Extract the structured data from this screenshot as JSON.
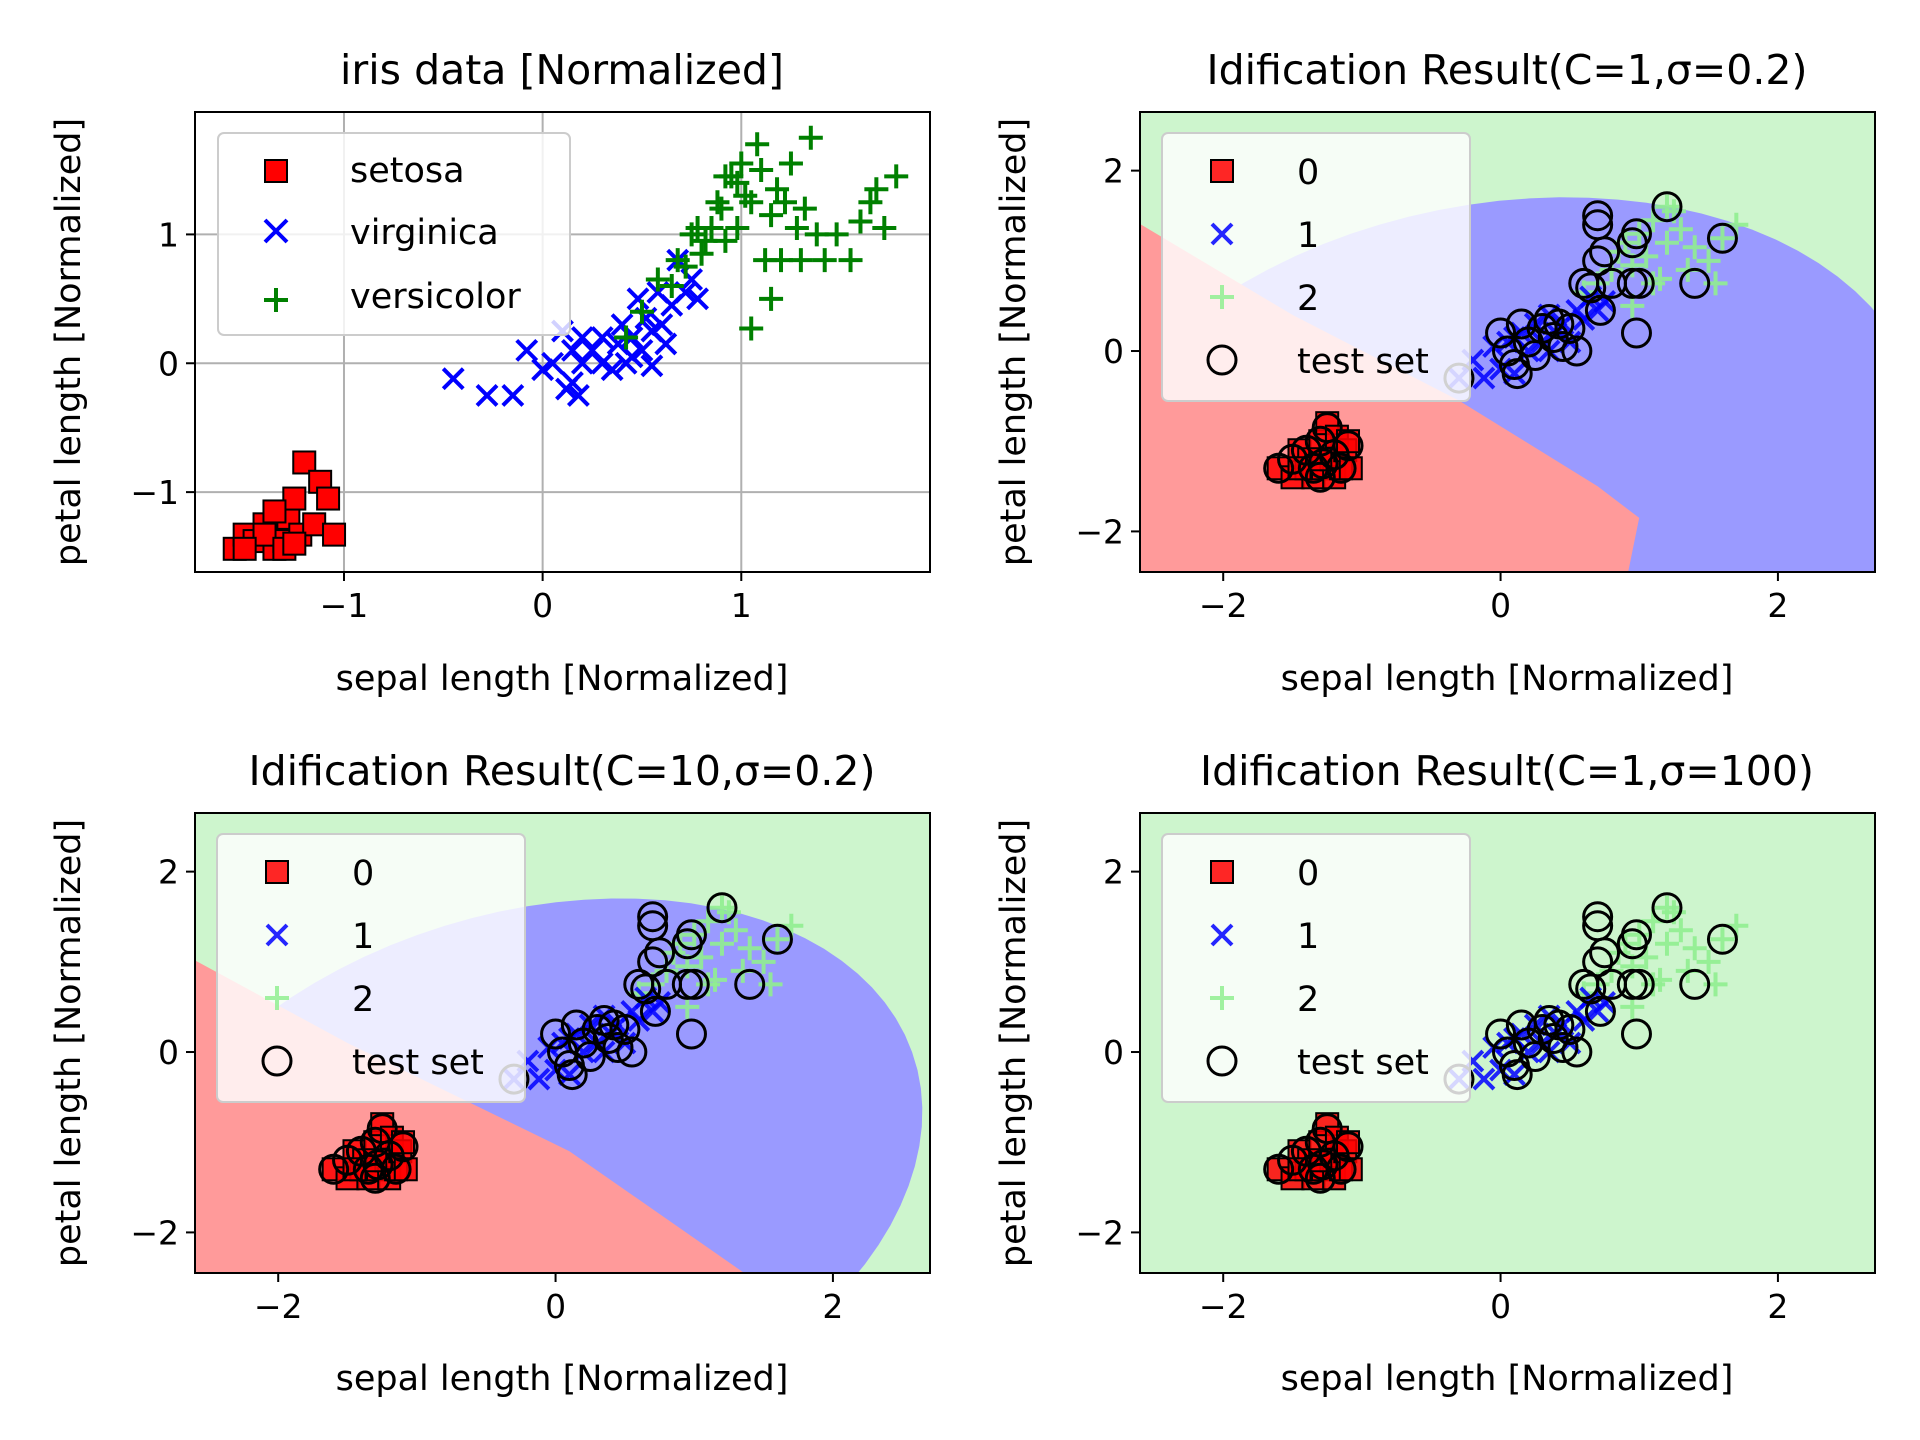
{
  "chart_data": [
    {
      "type": "scatter",
      "title": "iris data [Normalized]",
      "xlabel": "sepal length [Normalized]",
      "ylabel": "petal length [Normalized]",
      "xlim": [
        -1.75,
        1.95
      ],
      "ylim": [
        -1.62,
        1.95
      ],
      "xticks": [
        -1,
        0,
        1
      ],
      "yticks": [
        -1,
        0,
        1
      ],
      "xtick_labels": [
        "−1",
        "0",
        "1"
      ],
      "ytick_labels": [
        "−1",
        "0",
        "1"
      ],
      "grid": true,
      "legend_placement": "upper-left",
      "series": [
        {
          "name": "setosa",
          "marker": "square",
          "color": "#ff0000",
          "points": [
            [
              -1.55,
              -1.44
            ],
            [
              -1.5,
              -1.33
            ],
            [
              -1.45,
              -1.38
            ],
            [
              -1.4,
              -1.25
            ],
            [
              -1.35,
              -1.44
            ],
            [
              -1.3,
              -1.38
            ],
            [
              -1.28,
              -1.2
            ],
            [
              -1.25,
              -1.05
            ],
            [
              -1.22,
              -1.33
            ],
            [
              -1.2,
              -0.77
            ],
            [
              -1.15,
              -1.25
            ],
            [
              -1.12,
              -0.92
            ],
            [
              -1.08,
              -1.05
            ],
            [
              -1.05,
              -1.33
            ],
            [
              -1.4,
              -1.33
            ],
            [
              -1.3,
              -1.44
            ],
            [
              -1.5,
              -1.44
            ],
            [
              -1.35,
              -1.15
            ],
            [
              -1.25,
              -1.4
            ]
          ]
        },
        {
          "name": "virginica",
          "marker": "x",
          "color": "#0000ff",
          "points": [
            [
              -0.45,
              -0.12
            ],
            [
              -0.28,
              -0.25
            ],
            [
              -0.15,
              -0.25
            ],
            [
              -0.08,
              0.1
            ],
            [
              0.0,
              -0.05
            ],
            [
              0.05,
              0.0
            ],
            [
              0.1,
              0.25
            ],
            [
              0.12,
              -0.2
            ],
            [
              0.15,
              0.1
            ],
            [
              0.18,
              -0.25
            ],
            [
              0.2,
              0.0
            ],
            [
              0.25,
              0.1
            ],
            [
              0.3,
              0.2
            ],
            [
              0.35,
              -0.05
            ],
            [
              0.38,
              0.15
            ],
            [
              0.4,
              0.3
            ],
            [
              0.42,
              0.0
            ],
            [
              0.45,
              0.2
            ],
            [
              0.48,
              0.5
            ],
            [
              0.5,
              0.1
            ],
            [
              0.52,
              0.35
            ],
            [
              0.55,
              0.25
            ],
            [
              0.58,
              0.55
            ],
            [
              0.6,
              0.3
            ],
            [
              0.65,
              0.45
            ],
            [
              0.68,
              0.8
            ],
            [
              0.72,
              0.55
            ],
            [
              0.75,
              0.65
            ],
            [
              0.78,
              0.5
            ],
            [
              0.45,
              0.05
            ],
            [
              0.3,
              0.0
            ],
            [
              0.55,
              -0.02
            ],
            [
              0.62,
              0.15
            ],
            [
              0.2,
              0.2
            ],
            [
              0.15,
              -0.15
            ]
          ]
        },
        {
          "name": "versicolor",
          "marker": "plus",
          "color": "#008000",
          "points": [
            [
              0.42,
              0.2
            ],
            [
              0.5,
              0.4
            ],
            [
              0.58,
              0.65
            ],
            [
              0.65,
              0.6
            ],
            [
              0.68,
              0.8
            ],
            [
              0.72,
              0.75
            ],
            [
              0.75,
              1.0
            ],
            [
              0.78,
              1.05
            ],
            [
              0.8,
              0.85
            ],
            [
              0.82,
              0.95
            ],
            [
              0.85,
              1.05
            ],
            [
              0.88,
              1.25
            ],
            [
              0.9,
              1.2
            ],
            [
              0.92,
              0.95
            ],
            [
              0.95,
              1.45
            ],
            [
              0.98,
              1.4
            ],
            [
              1.0,
              1.55
            ],
            [
              1.02,
              1.3
            ],
            [
              1.05,
              1.25
            ],
            [
              1.08,
              1.7
            ],
            [
              1.1,
              1.5
            ],
            [
              1.12,
              0.8
            ],
            [
              1.15,
              1.15
            ],
            [
              1.18,
              1.35
            ],
            [
              1.2,
              0.8
            ],
            [
              1.22,
              1.25
            ],
            [
              1.25,
              1.55
            ],
            [
              1.28,
              1.05
            ],
            [
              1.3,
              0.8
            ],
            [
              1.32,
              1.2
            ],
            [
              1.35,
              1.75
            ],
            [
              1.38,
              1.0
            ],
            [
              1.42,
              0.8
            ],
            [
              1.48,
              1.0
            ],
            [
              1.55,
              0.8
            ],
            [
              1.6,
              1.1
            ],
            [
              1.65,
              1.25
            ],
            [
              1.68,
              1.35
            ],
            [
              1.72,
              1.05
            ],
            [
              1.78,
              1.45
            ],
            [
              1.05,
              0.27
            ],
            [
              1.15,
              0.5
            ],
            [
              0.92,
              1.45
            ],
            [
              0.98,
              1.05
            ]
          ]
        }
      ]
    },
    {
      "type": "scatter",
      "title": "Idification Result(C=1,σ=0.2)",
      "xlabel": "sepal length [Normalized]",
      "ylabel": "petal length [Normalized]",
      "xlim": [
        -2.6,
        2.7
      ],
      "ylim": [
        -2.45,
        2.65
      ],
      "xticks": [
        -2,
        0,
        2
      ],
      "yticks": [
        -2,
        0,
        2
      ],
      "xtick_labels": [
        "−2",
        "0",
        "2"
      ],
      "ytick_labels": [
        "−2",
        "0",
        "2"
      ],
      "grid": false,
      "legend_placement": "upper-left",
      "background": "decision regions: class 0 (red) lower-left, class 1 (blue) elliptical band, class 2 (green) elsewhere",
      "legend_entries": [
        "0",
        "1",
        "2",
        "test set"
      ]
    },
    {
      "type": "scatter",
      "title": "Idification Result(C=10,σ=0.2)",
      "xlabel": "sepal length [Normalized]",
      "ylabel": "petal length [Normalized]",
      "xlim": [
        -2.6,
        2.7
      ],
      "ylim": [
        -2.45,
        2.65
      ],
      "xticks": [
        -2,
        0,
        2
      ],
      "yticks": [
        -2,
        0,
        2
      ],
      "xtick_labels": [
        "−2",
        "0",
        "2"
      ],
      "ytick_labels": [
        "−2",
        "0",
        "2"
      ],
      "grid": false,
      "legend_placement": "upper-left",
      "background": "decision regions: class 0 (red) lower-left, class 1 (blue) elliptical band, class 2 (green) elsewhere",
      "legend_entries": [
        "0",
        "1",
        "2",
        "test set"
      ]
    },
    {
      "type": "scatter",
      "title": "Idification Result(C=1,σ=100)",
      "xlabel": "sepal length [Normalized]",
      "ylabel": "petal length [Normalized]",
      "xlim": [
        -2.6,
        2.7
      ],
      "ylim": [
        -2.45,
        2.65
      ],
      "xticks": [
        -2,
        0,
        2
      ],
      "yticks": [
        -2,
        0,
        2
      ],
      "xtick_labels": [
        "−2",
        "0",
        "2"
      ],
      "ytick_labels": [
        "−2",
        "0",
        "2"
      ],
      "grid": false,
      "legend_placement": "upper-left",
      "background": "decision region: class 2 (green) everywhere",
      "legend_entries": [
        "0",
        "1",
        "2",
        "test set"
      ]
    }
  ],
  "result_points": {
    "class0": [
      [
        -1.6,
        -1.3
      ],
      [
        -1.5,
        -1.4
      ],
      [
        -1.45,
        -1.1
      ],
      [
        -1.4,
        -1.3
      ],
      [
        -1.38,
        -1.2
      ],
      [
        -1.35,
        -1.4
      ],
      [
        -1.3,
        -1.0
      ],
      [
        -1.28,
        -1.3
      ],
      [
        -1.25,
        -0.8
      ],
      [
        -1.22,
        -1.2
      ],
      [
        -1.2,
        -1.4
      ],
      [
        -1.18,
        -0.95
      ],
      [
        -1.15,
        -1.3
      ],
      [
        -1.12,
        -1.1
      ],
      [
        -1.1,
        -1.0
      ],
      [
        -1.08,
        -1.3
      ],
      [
        -1.3,
        -1.2
      ],
      [
        -1.45,
        -1.3
      ]
    ],
    "class1": [
      [
        -0.3,
        -0.3
      ],
      [
        -0.2,
        -0.1
      ],
      [
        -0.12,
        -0.3
      ],
      [
        -0.05,
        0.05
      ],
      [
        0.0,
        -0.2
      ],
      [
        0.05,
        0.1
      ],
      [
        0.1,
        -0.25
      ],
      [
        0.15,
        0.2
      ],
      [
        0.2,
        0.0
      ],
      [
        0.25,
        0.3
      ],
      [
        0.3,
        0.1
      ],
      [
        0.35,
        0.4
      ],
      [
        0.4,
        0.2
      ],
      [
        0.45,
        0.3
      ],
      [
        0.5,
        0.1
      ],
      [
        0.55,
        0.45
      ],
      [
        0.6,
        0.35
      ],
      [
        0.65,
        0.6
      ],
      [
        0.7,
        0.45
      ],
      [
        0.75,
        0.55
      ],
      [
        0.35,
        0.0
      ],
      [
        0.1,
        0.15
      ]
    ],
    "class2": [
      [
        0.6,
        0.65
      ],
      [
        0.7,
        0.75
      ],
      [
        0.8,
        0.9
      ],
      [
        0.85,
        1.1
      ],
      [
        0.9,
        1.2
      ],
      [
        0.95,
        0.95
      ],
      [
        1.0,
        1.3
      ],
      [
        1.05,
        1.05
      ],
      [
        1.1,
        1.45
      ],
      [
        1.15,
        0.8
      ],
      [
        1.2,
        1.2
      ],
      [
        1.25,
        1.55
      ],
      [
        1.3,
        1.35
      ],
      [
        1.35,
        0.9
      ],
      [
        1.4,
        1.15
      ],
      [
        1.5,
        1.0
      ],
      [
        1.6,
        1.25
      ],
      [
        1.7,
        1.4
      ],
      [
        0.95,
        0.5
      ],
      [
        1.1,
        0.75
      ],
      [
        1.55,
        0.75
      ],
      [
        1.2,
        1.6
      ]
    ],
    "test": [
      [
        -1.6,
        -1.3
      ],
      [
        -1.5,
        -1.2
      ],
      [
        -1.4,
        -1.1
      ],
      [
        -1.35,
        -1.3
      ],
      [
        -1.3,
        -1.0
      ],
      [
        -1.28,
        -1.25
      ],
      [
        -1.25,
        -0.85
      ],
      [
        -1.2,
        -1.15
      ],
      [
        -1.15,
        -1.3
      ],
      [
        -1.1,
        -1.05
      ],
      [
        -1.3,
        -1.4
      ],
      [
        -0.3,
        -0.3
      ],
      [
        0.0,
        0.2
      ],
      [
        0.05,
        0.0
      ],
      [
        0.1,
        -0.15
      ],
      [
        0.12,
        -0.25
      ],
      [
        0.15,
        0.3
      ],
      [
        0.2,
        0.1
      ],
      [
        0.25,
        -0.05
      ],
      [
        0.3,
        0.25
      ],
      [
        0.35,
        0.35
      ],
      [
        0.38,
        0.15
      ],
      [
        0.42,
        0.3
      ],
      [
        0.45,
        0.05
      ],
      [
        0.5,
        0.25
      ],
      [
        0.55,
        0.0
      ],
      [
        0.6,
        0.75
      ],
      [
        0.65,
        0.7
      ],
      [
        0.7,
        1.0
      ],
      [
        0.72,
        0.45
      ],
      [
        0.75,
        1.1
      ],
      [
        0.8,
        0.75
      ],
      [
        0.7,
        1.4
      ],
      [
        0.7,
        1.5
      ],
      [
        0.95,
        1.2
      ],
      [
        0.98,
        1.3
      ],
      [
        1.0,
        0.75
      ],
      [
        0.95,
        0.75
      ],
      [
        0.98,
        0.2
      ],
      [
        1.2,
        1.6
      ],
      [
        1.4,
        0.75
      ],
      [
        1.6,
        1.25
      ]
    ]
  },
  "colors": {
    "setosa": "#ff0000",
    "virginica": "#0000ff",
    "versicolor": "#008000",
    "class0": "#ff0000",
    "class1": "#0000ff",
    "class2": "#90ee90",
    "region0": "#ff9a9a",
    "region1": "#9a9aff",
    "region2": "#cdf5cd",
    "test": "#000000"
  }
}
